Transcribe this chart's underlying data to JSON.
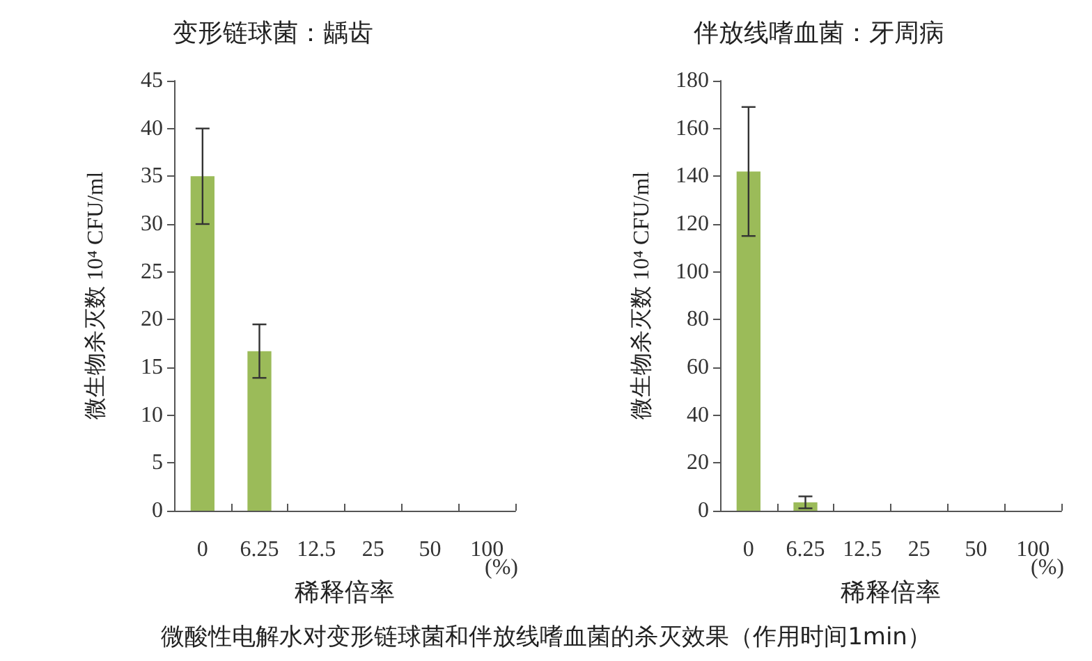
{
  "chart_data": [
    {
      "type": "bar",
      "title": "变形链球菌：龋齿",
      "xlabel": "稀释倍率",
      "ylabel": "微生物杀灭数 10⁴ CFU/ml",
      "categories": [
        "0",
        "6.25",
        "12.5",
        "25",
        "50",
        "100"
      ],
      "series": [
        {
          "color": "#9bbb59",
          "values": [
            35,
            16.7,
            0,
            0,
            0,
            0
          ],
          "errors": [
            5,
            2.8,
            null,
            null,
            null,
            null
          ]
        }
      ],
      "ylim": [
        0,
        45
      ],
      "yticks": [
        0,
        5,
        10,
        15,
        20,
        25,
        30,
        35,
        40,
        45
      ],
      "annotations": [
        "(%)",
        "微酸性电解水对变形链球菌和伴放线嗜血菌的杀灭效果（作用时间1min）"
      ]
    },
    {
      "type": "bar",
      "title": "伴放线嗜血菌：牙周病",
      "xlabel": "稀释倍率",
      "ylabel": "微生物杀灭数 10⁴ CFU/ml",
      "categories": [
        "0",
        "6.25",
        "12.5",
        "25",
        "50",
        "100"
      ],
      "series": [
        {
          "color": "#9bbb59",
          "values": [
            142,
            3.5,
            0,
            0,
            0,
            0
          ],
          "errors": [
            27,
            2.5,
            null,
            null,
            null,
            null
          ]
        }
      ],
      "ylim": [
        0,
        180
      ],
      "yticks": [
        0,
        20,
        40,
        60,
        80,
        100,
        120,
        140,
        160,
        180
      ],
      "annotations": [
        "(%)"
      ]
    }
  ]
}
